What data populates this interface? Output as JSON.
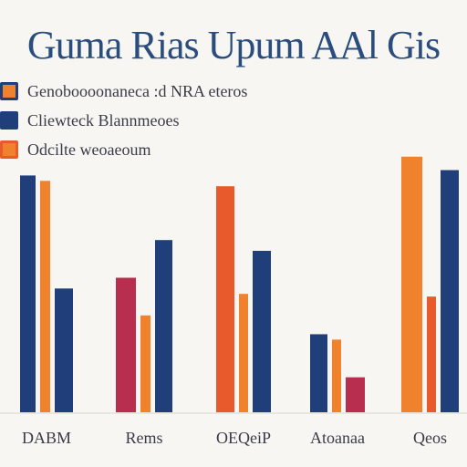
{
  "title": "Guma Rias Upum AAl Gis",
  "colors": {
    "navy": "#203f7a",
    "orange": "#f0812d",
    "red_orange": "#e8592c",
    "crimson": "#b72e4e",
    "background": "#f7f6f3"
  },
  "legend": [
    {
      "label": "Genoboooonaneca :d NRA eteros",
      "color": "#f0812d",
      "border": "#203f7a"
    },
    {
      "label": "Cliewteck Blannmeoes",
      "color": "#203f7a",
      "border": "#203f7a"
    },
    {
      "label": "Odcilte weoaeoum",
      "color": "#f0812d",
      "border": "#e8592c"
    }
  ],
  "chart_data": {
    "type": "bar",
    "title": "Guma Rias Upum AAl Gis",
    "categories": [
      "DABM",
      "Rems",
      "OEQeiP",
      "Atoanaa",
      "Qeos"
    ],
    "ylim": [
      0,
      100
    ],
    "grid": false,
    "legend_position": "top-left",
    "bars": [
      {
        "category": "DABM",
        "color": "#203f7a",
        "value": 88
      },
      {
        "category": "DABM",
        "color": "#f0812d",
        "value": 86
      },
      {
        "category": "DABM",
        "color": "#203f7a",
        "value": 46
      },
      {
        "category": "Rems",
        "color": "#b72e4e",
        "value": 50
      },
      {
        "category": "Rems",
        "color": "#f0812d",
        "value": 36
      },
      {
        "category": "Rems",
        "color": "#203f7a",
        "value": 64
      },
      {
        "category": "OEQeiP",
        "color": "#e8592c",
        "value": 84
      },
      {
        "category": "OEQeiP",
        "color": "#f0812d",
        "value": 44
      },
      {
        "category": "OEQeiP",
        "color": "#203f7a",
        "value": 60
      },
      {
        "category": "Atoanaa",
        "color": "#203f7a",
        "value": 29
      },
      {
        "category": "Atoanaa",
        "color": "#f0812d",
        "value": 27
      },
      {
        "category": "Atoanaa",
        "color": "#b72e4e",
        "value": 13
      },
      {
        "category": "Qeos",
        "color": "#f0812d",
        "value": 95
      },
      {
        "category": "Qeos",
        "color": "#e8592c",
        "value": 43
      },
      {
        "category": "Qeos",
        "color": "#203f7a",
        "value": 90
      }
    ]
  }
}
